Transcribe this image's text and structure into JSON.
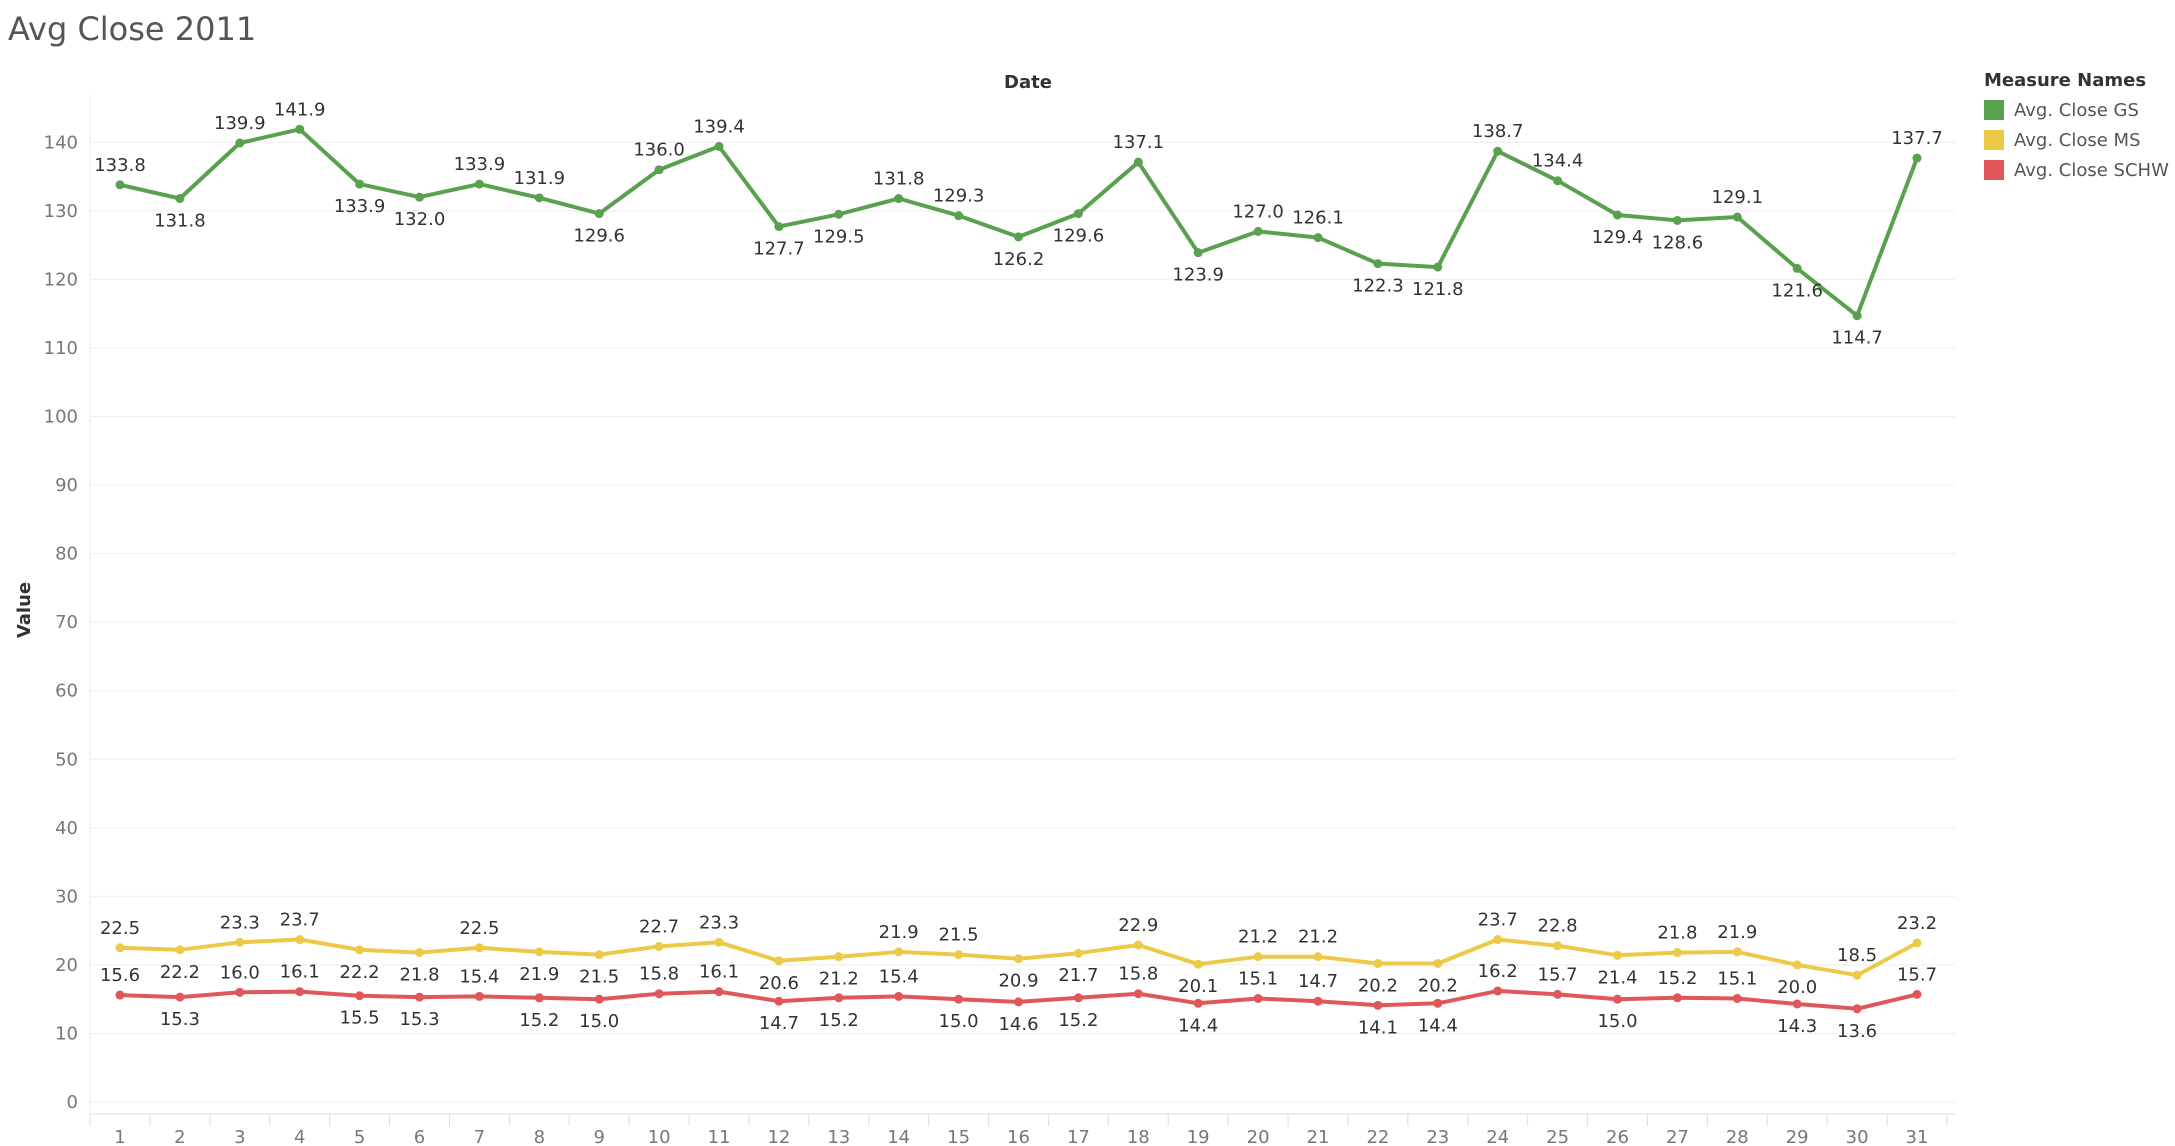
{
  "chart_data": {
    "type": "line",
    "title": "Avg Close 2011",
    "xlabel": "Date",
    "ylabel": "Value",
    "ylim": [
      0,
      148
    ],
    "yticks": [
      0,
      10,
      20,
      30,
      40,
      50,
      60,
      70,
      80,
      90,
      100,
      110,
      120,
      130,
      140
    ],
    "x": [
      1,
      2,
      3,
      4,
      5,
      6,
      7,
      8,
      9,
      10,
      11,
      12,
      13,
      14,
      15,
      16,
      17,
      18,
      19,
      20,
      21,
      22,
      23,
      24,
      25,
      26,
      27,
      28,
      29,
      30,
      31
    ],
    "legend_title": "Measure Names",
    "legend_position": "top-right",
    "grid": true,
    "series": [
      {
        "name": "Avg. Close  GS",
        "color": "#59a14f",
        "values": [
          133.8,
          131.8,
          139.9,
          141.9,
          133.9,
          132.0,
          133.9,
          131.9,
          129.6,
          136.0,
          139.4,
          127.7,
          129.5,
          131.8,
          129.3,
          126.2,
          129.6,
          137.1,
          123.9,
          127.0,
          126.1,
          122.3,
          121.8,
          138.7,
          134.4,
          129.4,
          128.6,
          129.1,
          121.6,
          114.7,
          137.7
        ],
        "label_pos": [
          "a",
          "b",
          "a",
          "a",
          "b",
          "b",
          "a",
          "a",
          "b",
          "a",
          "a",
          "b",
          "b",
          "a",
          "a",
          "b",
          "b",
          "a",
          "b",
          "a",
          "a",
          "b",
          "b",
          "a",
          "a",
          "b",
          "b",
          "a",
          "b",
          "b",
          "a"
        ]
      },
      {
        "name": "Avg. Close MS",
        "color": "#edc948",
        "values": [
          22.5,
          22.2,
          23.3,
          23.7,
          22.2,
          21.8,
          22.5,
          21.9,
          21.5,
          22.7,
          23.3,
          20.6,
          21.2,
          21.9,
          21.5,
          20.9,
          21.7,
          22.9,
          20.1,
          21.2,
          21.2,
          20.2,
          20.2,
          23.7,
          22.8,
          21.4,
          21.8,
          21.9,
          20.0,
          18.5,
          23.2
        ],
        "label_pos": [
          "a",
          "b",
          "a",
          "a",
          "b",
          "b",
          "a",
          "b",
          "b",
          "a",
          "a",
          "b",
          "b",
          "a",
          "a",
          "b",
          "b",
          "a",
          "b",
          "a",
          "a",
          "b",
          "b",
          "a",
          "a",
          "b",
          "a",
          "a",
          "b",
          "a",
          "a"
        ]
      },
      {
        "name": "Avg. Close SCHW",
        "color": "#e15759",
        "values": [
          15.6,
          15.3,
          16.0,
          16.1,
          15.5,
          15.3,
          15.4,
          15.2,
          15.0,
          15.8,
          16.1,
          14.7,
          15.2,
          15.4,
          15.0,
          14.6,
          15.2,
          15.8,
          14.4,
          15.1,
          14.7,
          14.1,
          14.4,
          16.2,
          15.7,
          15.0,
          15.2,
          15.1,
          14.3,
          13.6,
          15.7
        ],
        "label_pos": [
          "a",
          "b",
          "a",
          "a",
          "b",
          "b",
          "a",
          "b",
          "b",
          "a",
          "a",
          "b",
          "b",
          "a",
          "b",
          "b",
          "b",
          "a",
          "b",
          "a",
          "a",
          "b",
          "b",
          "a",
          "a",
          "b",
          "a",
          "a",
          "b",
          "b",
          "a"
        ]
      }
    ]
  }
}
